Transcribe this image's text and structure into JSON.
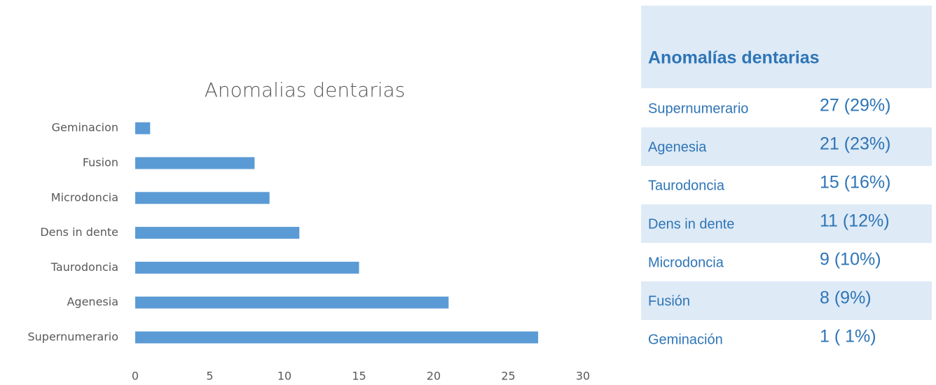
{
  "chart_data": {
    "type": "hbar",
    "title": "Anomalias dentarias",
    "categories": [
      "Supernumerario",
      "Agenesia",
      "Taurodoncia",
      "Dens in dente",
      "Microdoncia",
      "Fusion",
      "Geminacion"
    ],
    "values": [
      27,
      21,
      15,
      11,
      9,
      8,
      1
    ],
    "color": "#5b9bd5",
    "xlim": [
      0,
      30
    ],
    "xticks": [
      0,
      5,
      10,
      15,
      20,
      25,
      30
    ],
    "grid": false
  },
  "table": {
    "title": "Anomalías dentarias",
    "rows": [
      [
        "Supernumerario",
        "27 (29%)"
      ],
      [
        "Agenesia",
        "21 (23%)"
      ],
      [
        "Taurodoncia",
        "15 (16%)"
      ],
      [
        "Dens in dente",
        "11 (12%)"
      ],
      [
        "Microdoncia",
        "9 (10%)"
      ],
      [
        "Fusión",
        "8 (9%)"
      ],
      [
        "Geminación",
        "1 ( 1%)"
      ]
    ]
  }
}
